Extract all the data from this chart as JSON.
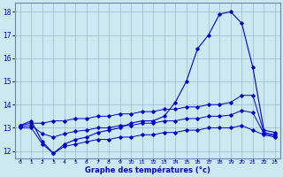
{
  "xlabel": "Graphe des températures (°c)",
  "bg_color": "#cce8f0",
  "grid_color": "#99bbcc",
  "line_color": "#0000cc",
  "xlim": [
    -0.5,
    23.5
  ],
  "ylim": [
    11.7,
    18.4
  ],
  "yticks": [
    12,
    13,
    14,
    15,
    16,
    17,
    18
  ],
  "xticks": [
    0,
    1,
    2,
    3,
    4,
    5,
    6,
    7,
    8,
    9,
    10,
    11,
    12,
    13,
    14,
    15,
    16,
    17,
    18,
    19,
    20,
    21,
    22,
    23
  ],
  "series": {
    "main_temp": {
      "x": [
        0,
        1,
        2,
        3,
        4,
        5,
        6,
        7,
        8,
        9,
        10,
        11,
        12,
        13,
        14,
        15,
        16,
        17,
        18,
        19,
        20,
        21,
        22,
        23
      ],
      "y": [
        13.1,
        13.3,
        12.4,
        11.9,
        12.3,
        12.5,
        12.6,
        12.8,
        12.9,
        13.0,
        13.2,
        13.3,
        13.3,
        13.5,
        14.1,
        15.0,
        16.4,
        17.0,
        17.9,
        18.0,
        17.5,
        15.6,
        12.9,
        12.8
      ]
    },
    "max_env": {
      "x": [
        0,
        1,
        2,
        3,
        4,
        5,
        6,
        7,
        8,
        9,
        10,
        11,
        12,
        13,
        14,
        15,
        16,
        17,
        18,
        19,
        20,
        21,
        22,
        23
      ],
      "y": [
        13.1,
        13.2,
        13.2,
        13.3,
        13.3,
        13.4,
        13.4,
        13.5,
        13.5,
        13.6,
        13.6,
        13.7,
        13.7,
        13.8,
        13.8,
        13.9,
        13.9,
        14.0,
        14.0,
        14.1,
        14.4,
        14.4,
        12.8,
        12.7
      ]
    },
    "min_env": {
      "x": [
        0,
        1,
        2,
        3,
        4,
        5,
        6,
        7,
        8,
        9,
        10,
        11,
        12,
        13,
        14,
        15,
        16,
        17,
        18,
        19,
        20,
        21,
        22,
        23
      ],
      "y": [
        13.0,
        13.0,
        12.3,
        11.9,
        12.2,
        12.3,
        12.4,
        12.5,
        12.5,
        12.6,
        12.6,
        12.7,
        12.7,
        12.8,
        12.8,
        12.9,
        12.9,
        13.0,
        13.0,
        13.0,
        13.1,
        12.9,
        12.7,
        12.6
      ]
    },
    "mean_env": {
      "x": [
        0,
        1,
        2,
        3,
        4,
        5,
        6,
        7,
        8,
        9,
        10,
        11,
        12,
        13,
        14,
        15,
        16,
        17,
        18,
        19,
        20,
        21,
        22,
        23
      ],
      "y": [
        13.05,
        13.1,
        12.75,
        12.6,
        12.75,
        12.85,
        12.9,
        13.0,
        13.0,
        13.1,
        13.1,
        13.2,
        13.2,
        13.3,
        13.3,
        13.4,
        13.4,
        13.5,
        13.5,
        13.55,
        13.75,
        13.65,
        12.75,
        12.65
      ]
    }
  }
}
